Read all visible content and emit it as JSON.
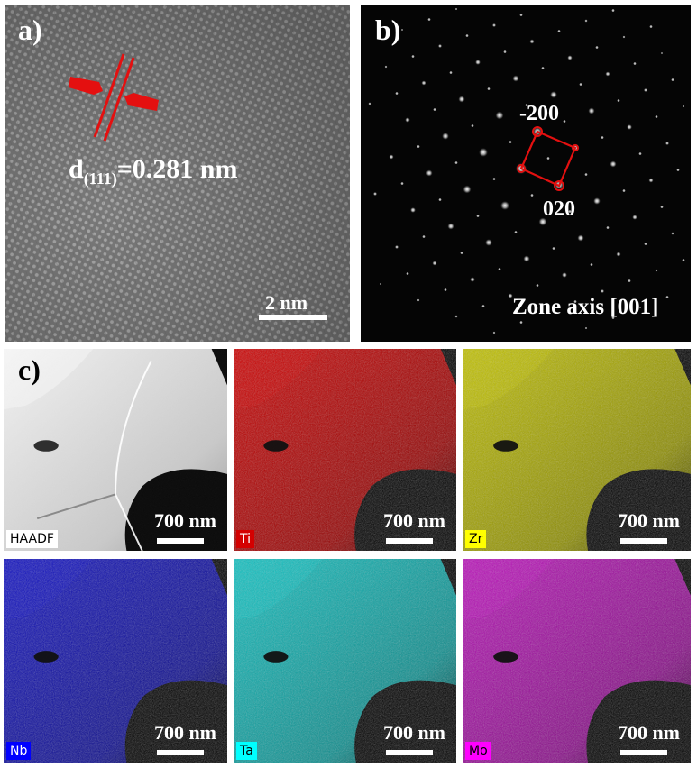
{
  "panel_a": {
    "label": "a)",
    "d_symbol": "d",
    "d_subscript": "(111)",
    "d_value": "=0.281 nm",
    "scale": "2 nm"
  },
  "panel_b": {
    "label": "b)",
    "spot_1": "-200",
    "spot_2": "020",
    "zone_axis": "Zone axis [001]"
  },
  "panel_c": {
    "label": "c)",
    "maps": [
      {
        "name": "HAADF",
        "color": "#bdbdbd",
        "tag_bg": "#ffffff",
        "tag_fg": "#000000",
        "scale": "700 nm"
      },
      {
        "name": "Ti",
        "color": "#d40000",
        "tag_bg": "#d40000",
        "tag_fg": "#ffffff",
        "scale": "700 nm"
      },
      {
        "name": "Zr",
        "color": "#c8c800",
        "tag_bg": "#ffff00",
        "tag_fg": "#000000",
        "scale": "700 nm"
      },
      {
        "name": "Nb",
        "color": "#1010c8",
        "tag_bg": "#0000ff",
        "tag_fg": "#ffffff",
        "scale": "700 nm"
      },
      {
        "name": "Ta",
        "color": "#10c8c8",
        "tag_bg": "#00ffff",
        "tag_fg": "#000000",
        "scale": "700 nm"
      },
      {
        "name": "Mo",
        "color": "#c010c0",
        "tag_bg": "#ff00ff",
        "tag_fg": "#000000",
        "scale": "700 nm"
      }
    ]
  }
}
